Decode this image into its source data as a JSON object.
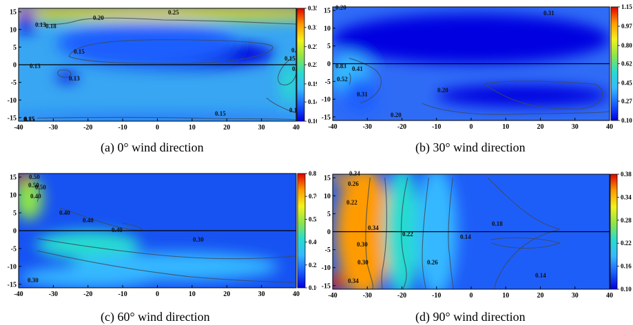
{
  "figure": {
    "panels": [
      {
        "caption": "(a) 0° wind direction",
        "colorbar_ticks": [
          "0.35",
          "0.31",
          "0.27",
          "0.23",
          "0.19",
          "0.14",
          "0.10"
        ],
        "contour_labels": [
          "0.25",
          "0.20",
          "0.18",
          "0.15",
          "0.13",
          "0.13",
          "0.13",
          "0.18",
          "0.15",
          "0.18",
          "0.15",
          "0.15",
          "0.15",
          "0.15"
        ]
      },
      {
        "caption": "(b) 30° wind direction",
        "colorbar_ticks": [
          "1.15",
          "0.97",
          "0.80",
          "0.62",
          "0.45",
          "0.27",
          "0.10"
        ],
        "contour_labels": [
          "0.31",
          "0.20",
          "0.83",
          "0.41",
          "0.52",
          "0.31",
          "0.20",
          "0.20"
        ]
      },
      {
        "caption": "(c) 60° wind direction",
        "colorbar_ticks": [
          "0.81",
          "0.70",
          "0.55",
          "0.40",
          "0.25",
          "0.10"
        ],
        "contour_labels": [
          "0.50",
          "0.50",
          "0.50",
          "0.40",
          "0.40",
          "0.40",
          "0.40",
          "0.30",
          "0.30"
        ]
      },
      {
        "caption": "(d) 90° wind direction",
        "colorbar_ticks": [
          "0.38",
          "0.34",
          "0.28",
          "0.22",
          "0.16",
          "0.10"
        ],
        "contour_labels": [
          "0.34",
          "0.26",
          "0.22",
          "0.34",
          "0.18",
          "0.22",
          "0.14",
          "0.30",
          "0.30",
          "0.26",
          "0.14",
          "0.34"
        ]
      }
    ]
  },
  "chart_data": [
    {
      "type": "heatmap",
      "x_ticks": [
        "-40",
        "-30",
        "-20",
        "-10",
        "0",
        "10",
        "20",
        "30",
        "40"
      ],
      "y_ticks": [
        "15",
        "10",
        "5",
        "0",
        "-5",
        "-10",
        "-15"
      ],
      "xlim": [
        -40,
        40
      ],
      "ylim": [
        -16,
        16
      ],
      "colorbar_range": [
        0.1,
        0.35
      ],
      "colormap": [
        "#0000e0",
        "#1a5fff",
        "#36b8ff",
        "#27dcd0",
        "#8ee54a",
        "#f2f21c",
        "#ff9b00",
        "#e00000"
      ],
      "background": "#38a6f2",
      "blobs": [
        {
          "x": 0,
          "y": 15.6,
          "rx": 60,
          "ry": 1.0,
          "v": 0.35
        },
        {
          "x": 0,
          "y": 14.0,
          "rx": 60,
          "ry": 1.4,
          "v": 0.27
        },
        {
          "x": -38,
          "y": 12,
          "rx": 3,
          "ry": 3,
          "v": 0.11
        },
        {
          "x": 5,
          "y": 3,
          "rx": 29,
          "ry": 4,
          "v": 0.1
        },
        {
          "x": -3,
          "y": 6,
          "rx": 26,
          "ry": 6,
          "v": 0.13
        },
        {
          "x": -26,
          "y": -3.5,
          "rx": 3,
          "ry": 1.5,
          "v": 0.11
        },
        {
          "x": 0,
          "y": -15.3,
          "rx": 45,
          "ry": 1.0,
          "v": 0.15
        },
        {
          "x": 38,
          "y": -5,
          "rx": 2.5,
          "ry": 6,
          "v": 0.19
        }
      ]
    },
    {
      "type": "heatmap",
      "x_ticks": [
        "-40",
        "-30",
        "-20",
        "-10",
        "0",
        "10",
        "20",
        "30",
        "40"
      ],
      "y_ticks": [
        "15",
        "10",
        "5",
        "0",
        "-5",
        "-10",
        "-15"
      ],
      "xlim": [
        -40,
        40
      ],
      "ylim": [
        -16,
        16
      ],
      "colorbar_range": [
        0.1,
        1.15
      ],
      "colormap": [
        "#0000e0",
        "#1a5fff",
        "#36b8ff",
        "#27dcd0",
        "#8ee54a",
        "#f2f21c",
        "#ff9b00",
        "#e00000"
      ],
      "background": "#2f6cf6",
      "blobs": [
        {
          "x": 0,
          "y": 7,
          "rx": 40,
          "ry": 7,
          "v": 0.16
        },
        {
          "x": -38,
          "y": -2,
          "rx": 3,
          "ry": 3,
          "v": 1.1
        },
        {
          "x": -35,
          "y": -3,
          "rx": 6,
          "ry": 6,
          "v": 0.45
        },
        {
          "x": -32,
          "y": -9,
          "rx": 5,
          "ry": 5,
          "v": 0.3
        },
        {
          "x": 15,
          "y": -9,
          "rx": 25,
          "ry": 3,
          "v": 0.16
        }
      ]
    },
    {
      "type": "heatmap",
      "x_ticks": [
        "-40",
        "-30",
        "-20",
        "-10",
        "0",
        "10",
        "20",
        "30",
        "40"
      ],
      "y_ticks": [
        "15",
        "10",
        "5",
        "0",
        "-5",
        "-10",
        "-15"
      ],
      "xlim": [
        -40,
        40
      ],
      "ylim": [
        -16,
        16
      ],
      "colorbar_range": [
        0.1,
        0.81
      ],
      "colormap": [
        "#0000e0",
        "#1a5fff",
        "#36b8ff",
        "#27dcd0",
        "#8ee54a",
        "#f2f21c",
        "#ff9b00",
        "#e00000"
      ],
      "background": "#1752f2",
      "blobs": [
        {
          "x": -37,
          "y": 9,
          "rx": 4,
          "ry": 6,
          "v": 0.55
        },
        {
          "x": -39,
          "y": 15,
          "rx": 2,
          "ry": 2,
          "v": 0.81
        },
        {
          "x": -20,
          "y": -4,
          "rx": 15,
          "ry": 4,
          "v": 0.38
        },
        {
          "x": 5,
          "y": -10,
          "rx": 30,
          "ry": 4,
          "v": 0.3
        },
        {
          "x": -20,
          "y": -13,
          "rx": 20,
          "ry": 3,
          "v": 0.3
        }
      ]
    },
    {
      "type": "heatmap",
      "x_ticks": [
        "-40",
        "-30",
        "-20",
        "-10",
        "0",
        "10",
        "20",
        "30",
        "40"
      ],
      "y_ticks": [
        "15",
        "10",
        "5",
        "0",
        "-5",
        "-10",
        "-15"
      ],
      "xlim": [
        -40,
        40
      ],
      "ylim": [
        -16,
        16
      ],
      "colorbar_range": [
        0.1,
        0.38
      ],
      "colormap": [
        "#0000e0",
        "#1a5fff",
        "#36b8ff",
        "#27dcd0",
        "#8ee54a",
        "#f2f21c",
        "#ff9b00",
        "#e00000"
      ],
      "background": "#1e5ef8",
      "blobs": [
        {
          "x": -31,
          "y": 0,
          "rx": 8,
          "ry": 18,
          "v": 0.32
        },
        {
          "x": -20,
          "y": 0,
          "rx": 5,
          "ry": 18,
          "v": 0.22
        },
        {
          "x": -10,
          "y": 0,
          "rx": 6,
          "ry": 18,
          "v": 0.18
        },
        {
          "x": -39,
          "y": -14,
          "rx": 2.5,
          "ry": 2.5,
          "v": 0.38
        },
        {
          "x": -38,
          "y": 15,
          "rx": 2,
          "ry": 2,
          "v": 0.36
        }
      ]
    }
  ]
}
